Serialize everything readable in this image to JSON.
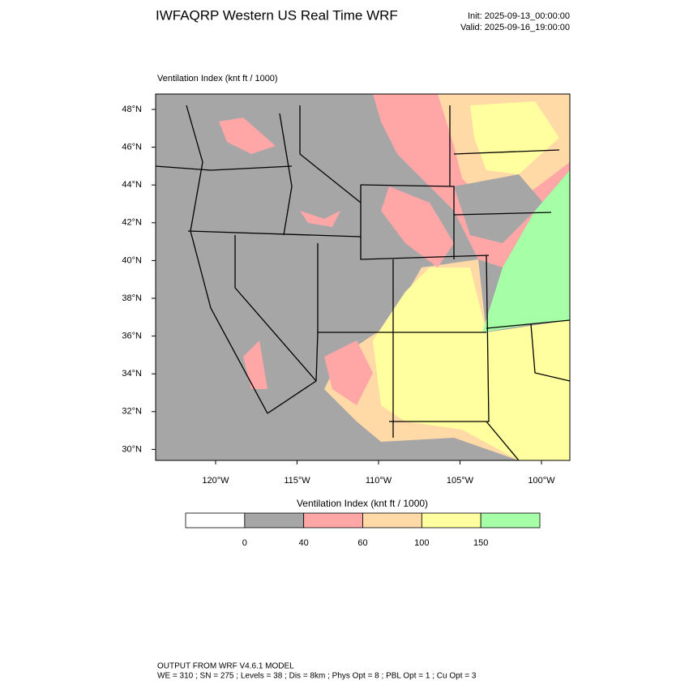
{
  "header": {
    "title": "IWFAQRP Western US Real Time WRF",
    "init": "Init: 2025-09-13_00:00:00",
    "valid": "Valid: 2025-09-16_19:00:00"
  },
  "map": {
    "subtitle": "Ventilation Index   (knt ft / 1000)",
    "lat_labels": [
      "48°N",
      "46°N",
      "44°N",
      "42°N",
      "40°N",
      "38°N",
      "36°N",
      "34°N",
      "32°N",
      "30°N"
    ],
    "lon_labels": [
      "120°W",
      "115°W",
      "110°W",
      "105°W",
      "100°W"
    ]
  },
  "colorbar": {
    "title": "Ventilation Index   (knt ft / 1000)",
    "colors": [
      "#ffffff",
      "#a6a6a6",
      "#ffa6a6",
      "#ffd9a6",
      "#ffff9f",
      "#a6ffa6"
    ],
    "levels": [
      0,
      40,
      60,
      100,
      150
    ]
  },
  "footer": {
    "line1": "OUTPUT FROM WRF V4.6.1 MODEL",
    "line2": "WE = 310 ; SN = 275 ; Levels = 38 ; Dis = 8km ; Phys Opt = 8 ; PBL Opt = 1 ; Cu Opt = 3"
  }
}
